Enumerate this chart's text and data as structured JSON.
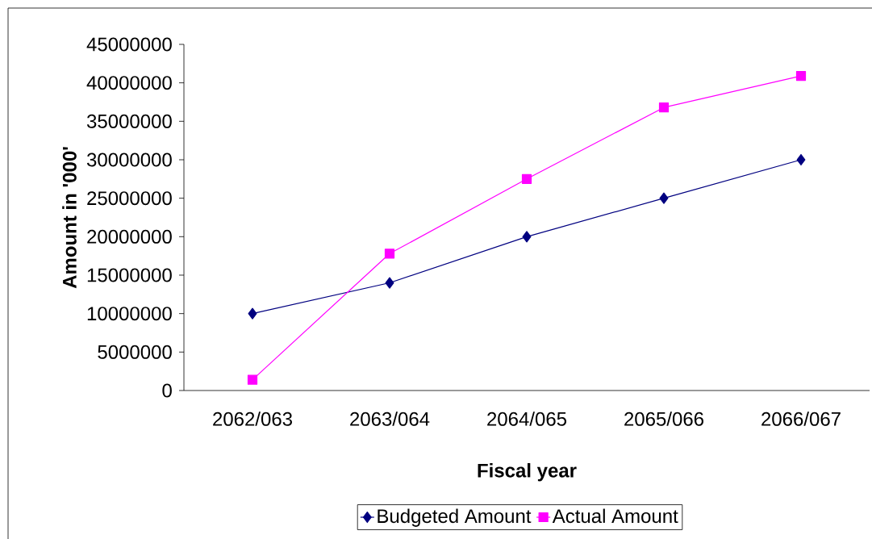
{
  "chart_data": {
    "type": "line",
    "xlabel": "Fiscal year",
    "ylabel": "Amount in '000'",
    "categories": [
      "2062/063",
      "2063/064",
      "2064/065",
      "2065/066",
      "2066/067"
    ],
    "series": [
      {
        "name": "Budgeted Amount",
        "color": "#000080",
        "marker": "diamond",
        "values": [
          10000000,
          14000000,
          20000000,
          25000000,
          30000000
        ]
      },
      {
        "name": "Actual Amount",
        "color": "#ff00ff",
        "marker": "square",
        "values": [
          1400000,
          17800000,
          27500000,
          36800000,
          40900000
        ]
      }
    ],
    "ylim": [
      0,
      45000000
    ],
    "yticks": [
      0,
      5000000,
      10000000,
      15000000,
      20000000,
      25000000,
      30000000,
      35000000,
      40000000,
      45000000
    ],
    "grid": false,
    "legend": "bottom"
  }
}
